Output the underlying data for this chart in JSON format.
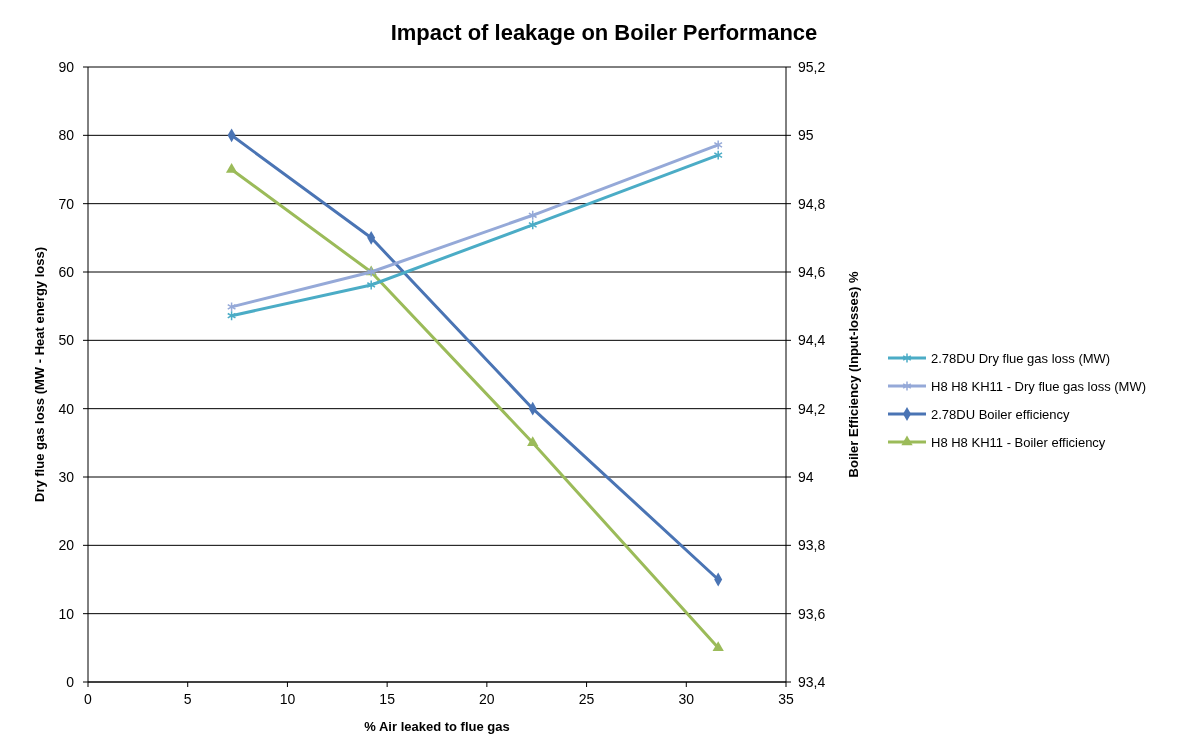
{
  "chart_data": {
    "type": "line",
    "title": "Impact of leakage on Boiler Performance",
    "xlabel": "% Air leaked to flue gas",
    "ylabel": "Dry flue gas loss (MW - Heat energy loss)",
    "y2label": "Boiler Efficiency (Input-losses) %",
    "x": [
      7.2,
      14.2,
      22.3,
      31.6
    ],
    "series": [
      {
        "name": "2.78DU Dry flue gas loss (MW)",
        "color": "#4bacc6",
        "marker": "cross",
        "values": [
          53.6,
          58.1,
          66.9,
          77.1
        ]
      },
      {
        "name": "H8 H8 KH11 - Dry flue gas loss (MW)",
        "color": "#95a9d8",
        "marker": "cross",
        "values": [
          54.9,
          60.0,
          68.3,
          78.6
        ]
      },
      {
        "name": "2.78DU Boiler efficiency",
        "color": "#4a74b4",
        "marker": "diamond",
        "axis": "y2",
        "values": [
          95.0,
          94.7,
          94.2,
          93.7
        ]
      },
      {
        "name": "H8 H8 KH11 - Boiler efficiency",
        "color": "#9bbb59",
        "marker": "triangle",
        "axis": "y2",
        "values": [
          94.9,
          94.6,
          94.1,
          93.5
        ]
      }
    ],
    "xlim": [
      0,
      35
    ],
    "xticks": [
      0,
      5,
      10,
      15,
      20,
      25,
      30,
      35
    ],
    "ylim": [
      0,
      90
    ],
    "yticks": [
      0,
      10,
      20,
      30,
      40,
      50,
      60,
      70,
      80,
      90
    ],
    "y2lim": [
      93.4,
      95.2
    ],
    "y2ticks": [
      {
        "value": 93.4,
        "label": "93,4"
      },
      {
        "value": 93.6,
        "label": "93,6"
      },
      {
        "value": 93.8,
        "label": "93,8"
      },
      94,
      {
        "value": 94.2,
        "label": "94,2"
      },
      {
        "value": 94.4,
        "label": "94,4"
      },
      {
        "value": 94.6,
        "label": "94,6"
      },
      {
        "value": 94.8,
        "label": "94,8"
      },
      95,
      {
        "value": 95.2,
        "label": "95,2"
      }
    ],
    "grid": "y",
    "legend": "right",
    "line_style": "solid"
  }
}
